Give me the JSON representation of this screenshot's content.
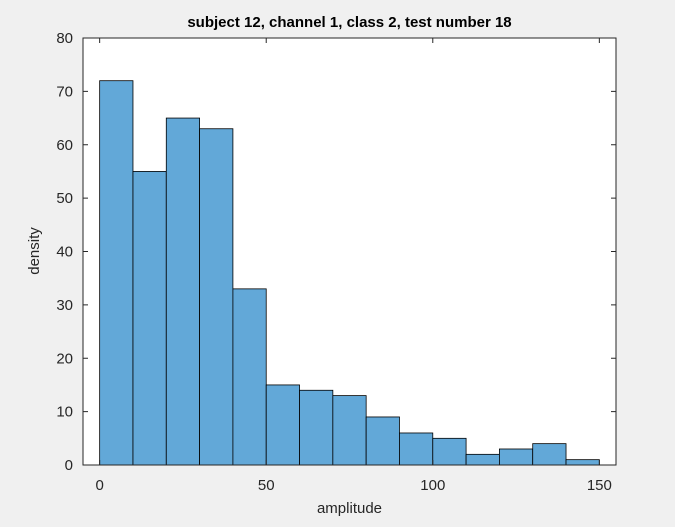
{
  "chart_data": {
    "type": "bar",
    "title": "subject 12, channel 1, class 2, test number 18",
    "xlabel": "amplitude",
    "ylabel": "density",
    "xlim": [
      -5,
      155
    ],
    "ylim": [
      0,
      80
    ],
    "xticks": [
      0,
      50,
      100,
      150
    ],
    "yticks": [
      0,
      10,
      20,
      30,
      40,
      50,
      60,
      70,
      80
    ],
    "bin_edges": [
      0,
      10,
      20,
      30,
      40,
      50,
      60,
      70,
      80,
      90,
      100,
      110,
      120,
      130,
      140,
      150
    ],
    "values": [
      72,
      55,
      65,
      63,
      33,
      15,
      14,
      13,
      9,
      6,
      5,
      2,
      3,
      4,
      1
    ],
    "bar_color": "#62a8d8",
    "edge_color": "#000000",
    "grid": false
  }
}
